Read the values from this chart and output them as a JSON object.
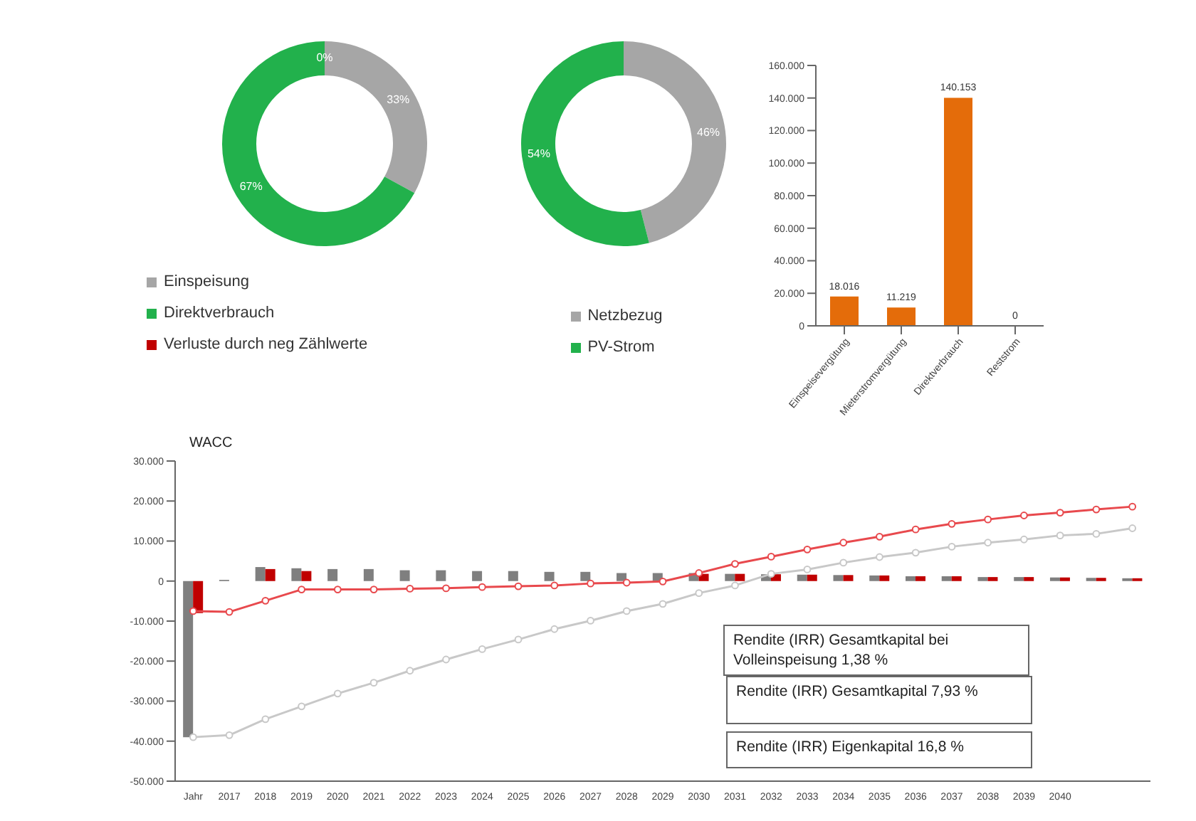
{
  "chart_data": [
    {
      "type": "donut",
      "categories": [
        "Einspeisung",
        "Direktverbrauch",
        "Verluste durch neg Zählwerte"
      ],
      "values": [
        33,
        67,
        0
      ],
      "colors": [
        "#a6a6a6",
        "#22b14c",
        "#c00000"
      ],
      "value_labels": [
        "33%",
        "67%",
        "0%"
      ],
      "legend": "bottom left"
    },
    {
      "type": "donut",
      "categories": [
        "Netzbezug",
        "PV-Strom"
      ],
      "values": [
        46,
        54
      ],
      "colors": [
        "#a6a6a6",
        "#22b14c"
      ],
      "value_labels": [
        "46%",
        "54%"
      ],
      "legend": "bottom"
    },
    {
      "type": "bar",
      "categories": [
        "Einspeisevergütung",
        "Mieterstromvergütung",
        "Direktverbrauch",
        "Reststrom"
      ],
      "values": [
        18016,
        11219,
        140153,
        0
      ],
      "color": "#e46c0a",
      "value_labels": [
        "18.016",
        "11.219",
        "140.153",
        "0"
      ],
      "ylim": [
        0,
        160000
      ],
      "yticks": [
        0,
        {
          "value": 20000,
          "label": "20.000"
        },
        {
          "value": 40000,
          "label": "40.000"
        },
        {
          "value": 60000,
          "label": "60.000"
        },
        {
          "value": 80000,
          "label": "80.000"
        },
        {
          "value": 100000,
          "label": "100.000"
        },
        {
          "value": 120000,
          "label": "120.000"
        },
        {
          "value": 140000,
          "label": "140.000"
        },
        {
          "value": 160000,
          "label": "160.000"
        }
      ]
    },
    {
      "type": "bar",
      "title": "WACC",
      "categories": [
        "Jahr",
        "2017",
        "2018",
        "2019",
        "2020",
        "2021",
        "2022",
        "2023",
        "2024",
        "2025",
        "2026",
        "2027",
        "2028",
        "2029",
        "2030",
        "2031",
        "2032",
        "2033",
        "2034",
        "2035",
        "2036",
        "2037",
        "2038",
        "2039",
        "2040",
        null,
        null
      ],
      "series": [
        {
          "type": "bar",
          "color": "#7f7f7f",
          "values": [
            -39000,
            300,
            3500,
            3200,
            3000,
            3000,
            2700,
            2700,
            2500,
            2500,
            2300,
            2300,
            2000,
            2000,
            2000,
            1800,
            1700,
            1600,
            1500,
            1400,
            1200,
            1200,
            1000,
            1000,
            900,
            800,
            700
          ]
        },
        {
          "type": "bar",
          "color": "#c00000",
          "values": [
            -8000,
            0,
            3000,
            2500,
            0,
            0,
            0,
            0,
            0,
            0,
            0,
            null,
            null,
            null,
            1800,
            1800,
            1700,
            1600,
            1500,
            1400,
            1200,
            1200,
            1000,
            1000,
            900,
            800,
            700
          ]
        },
        {
          "type": "line",
          "color": "#c8c8c8",
          "values": [
            -39000,
            -38500,
            -34500,
            -31300,
            -28100,
            -25400,
            -22400,
            -19600,
            -17000,
            -14600,
            -12000,
            -9900,
            -7500,
            -5700,
            -3000,
            -1100,
            1800,
            2900,
            4600,
            6000,
            7100,
            8600,
            9600,
            10400,
            11400,
            11800,
            13200
          ]
        },
        {
          "type": "line",
          "color": "#e8494d",
          "values": [
            -7500,
            -7700,
            -4900,
            -2100,
            -2100,
            -2100,
            -1900,
            -1800,
            -1500,
            -1300,
            -1100,
            -600,
            -400,
            -100,
            2000,
            4300,
            6100,
            7900,
            9600,
            11100,
            12900,
            14300,
            15400,
            16400,
            17100,
            17900,
            18600
          ]
        }
      ],
      "marker": "circle",
      "ylim": [
        -50000,
        30000
      ],
      "yticks": [
        {
          "value": -50000,
          "label": "-50.000"
        },
        {
          "value": -40000,
          "label": "-40.000"
        },
        {
          "value": -30000,
          "label": "-30.000"
        },
        {
          "value": -20000,
          "label": "-20.000"
        },
        {
          "value": -10000,
          "label": "-10.000"
        },
        0,
        {
          "value": 10000,
          "label": "10.000"
        },
        {
          "value": 20000,
          "label": "20.000"
        },
        {
          "value": 30000,
          "label": "30.000"
        }
      ],
      "annotations": [
        "Rendite (IRR) Gesamtkapital bei Volleinspeisung 1,38 %",
        "Rendite (IRR) Gesamtkapital 7,93 %",
        "Rendite (IRR) Eigenkapital 16,8 %"
      ]
    }
  ]
}
